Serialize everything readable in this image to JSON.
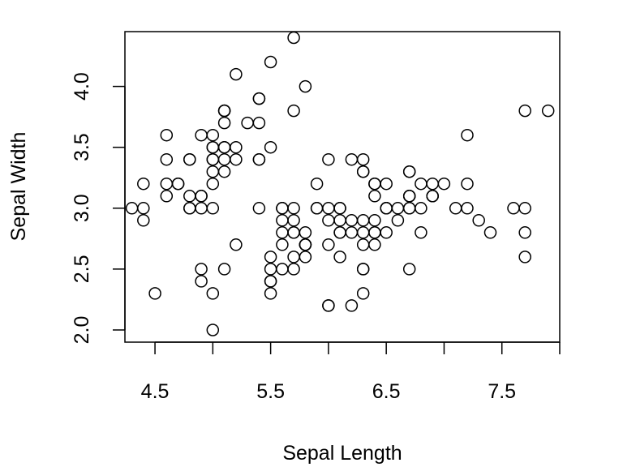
{
  "chart_data": {
    "type": "scatter",
    "title": "",
    "xlabel": "Sepal Length",
    "ylabel": "Sepal Width",
    "xlim": [
      4.24,
      8.0
    ],
    "ylim": [
      1.9,
      4.45
    ],
    "xticks": [
      4.5,
      5.5,
      6.5,
      7.5
    ],
    "xtick_labels": [
      "4.5",
      "5.5",
      "6.5",
      "7.5"
    ],
    "xticks_unlabeled": [
      5.0,
      6.0,
      7.0,
      8.0
    ],
    "yticks": [
      2.0,
      2.5,
      3.0,
      3.5,
      4.0
    ],
    "ytick_labels": [
      "2.0",
      "2.5",
      "3.0",
      "3.5",
      "4.0"
    ],
    "grid": false,
    "points": [
      [
        5.1,
        3.5
      ],
      [
        4.9,
        3.0
      ],
      [
        4.7,
        3.2
      ],
      [
        4.6,
        3.1
      ],
      [
        5.0,
        3.6
      ],
      [
        5.4,
        3.9
      ],
      [
        4.6,
        3.4
      ],
      [
        5.0,
        3.4
      ],
      [
        4.4,
        2.9
      ],
      [
        4.9,
        3.1
      ],
      [
        5.4,
        3.7
      ],
      [
        4.8,
        3.4
      ],
      [
        4.8,
        3.0
      ],
      [
        4.3,
        3.0
      ],
      [
        5.8,
        4.0
      ],
      [
        5.7,
        4.4
      ],
      [
        5.4,
        3.9
      ],
      [
        5.1,
        3.5
      ],
      [
        5.7,
        3.8
      ],
      [
        5.1,
        3.8
      ],
      [
        5.4,
        3.4
      ],
      [
        5.1,
        3.7
      ],
      [
        4.6,
        3.6
      ],
      [
        5.1,
        3.3
      ],
      [
        4.8,
        3.4
      ],
      [
        5.0,
        3.0
      ],
      [
        5.0,
        3.4
      ],
      [
        5.2,
        3.5
      ],
      [
        5.2,
        3.4
      ],
      [
        4.7,
        3.2
      ],
      [
        4.8,
        3.1
      ],
      [
        5.4,
        3.4
      ],
      [
        5.2,
        4.1
      ],
      [
        5.5,
        4.2
      ],
      [
        4.9,
        3.1
      ],
      [
        5.0,
        3.2
      ],
      [
        5.5,
        3.5
      ],
      [
        4.9,
        3.6
      ],
      [
        4.4,
        3.0
      ],
      [
        5.1,
        3.4
      ],
      [
        5.0,
        3.5
      ],
      [
        4.5,
        2.3
      ],
      [
        4.4,
        3.2
      ],
      [
        5.0,
        3.5
      ],
      [
        5.1,
        3.8
      ],
      [
        4.8,
        3.0
      ],
      [
        5.1,
        3.8
      ],
      [
        4.6,
        3.2
      ],
      [
        5.3,
        3.7
      ],
      [
        5.0,
        3.3
      ],
      [
        7.0,
        3.2
      ],
      [
        6.4,
        3.2
      ],
      [
        6.9,
        3.1
      ],
      [
        5.5,
        2.3
      ],
      [
        6.5,
        2.8
      ],
      [
        5.7,
        2.8
      ],
      [
        6.3,
        3.3
      ],
      [
        4.9,
        2.4
      ],
      [
        6.6,
        2.9
      ],
      [
        5.2,
        2.7
      ],
      [
        5.0,
        2.0
      ],
      [
        5.9,
        3.0
      ],
      [
        6.0,
        2.2
      ],
      [
        6.1,
        2.9
      ],
      [
        5.6,
        2.9
      ],
      [
        6.7,
        3.1
      ],
      [
        5.6,
        3.0
      ],
      [
        5.8,
        2.7
      ],
      [
        6.2,
        2.2
      ],
      [
        5.6,
        2.5
      ],
      [
        5.9,
        3.2
      ],
      [
        6.1,
        2.8
      ],
      [
        6.3,
        2.5
      ],
      [
        6.1,
        2.8
      ],
      [
        6.4,
        2.9
      ],
      [
        6.6,
        3.0
      ],
      [
        6.8,
        2.8
      ],
      [
        6.7,
        3.0
      ],
      [
        6.0,
        2.9
      ],
      [
        5.7,
        2.6
      ],
      [
        5.5,
        2.4
      ],
      [
        5.5,
        2.4
      ],
      [
        5.8,
        2.7
      ],
      [
        6.0,
        2.7
      ],
      [
        5.4,
        3.0
      ],
      [
        6.0,
        3.4
      ],
      [
        6.7,
        3.1
      ],
      [
        6.3,
        2.3
      ],
      [
        5.6,
        3.0
      ],
      [
        5.5,
        2.5
      ],
      [
        5.5,
        2.6
      ],
      [
        6.1,
        3.0
      ],
      [
        5.8,
        2.6
      ],
      [
        5.0,
        2.3
      ],
      [
        5.6,
        2.7
      ],
      [
        5.7,
        3.0
      ],
      [
        5.7,
        2.9
      ],
      [
        6.2,
        2.9
      ],
      [
        5.1,
        2.5
      ],
      [
        5.7,
        2.8
      ],
      [
        6.3,
        3.3
      ],
      [
        5.8,
        2.7
      ],
      [
        7.1,
        3.0
      ],
      [
        6.3,
        2.9
      ],
      [
        6.5,
        3.0
      ],
      [
        7.6,
        3.0
      ],
      [
        4.9,
        2.5
      ],
      [
        7.3,
        2.9
      ],
      [
        6.7,
        2.5
      ],
      [
        7.2,
        3.6
      ],
      [
        6.5,
        3.2
      ],
      [
        6.4,
        2.7
      ],
      [
        6.8,
        3.0
      ],
      [
        5.7,
        2.5
      ],
      [
        5.8,
        2.8
      ],
      [
        6.4,
        3.2
      ],
      [
        6.5,
        3.0
      ],
      [
        7.7,
        3.8
      ],
      [
        7.7,
        2.6
      ],
      [
        6.0,
        2.2
      ],
      [
        6.9,
        3.2
      ],
      [
        5.6,
        2.8
      ],
      [
        7.7,
        2.8
      ],
      [
        6.3,
        2.7
      ],
      [
        6.7,
        3.3
      ],
      [
        7.2,
        3.2
      ],
      [
        6.2,
        2.8
      ],
      [
        6.1,
        3.0
      ],
      [
        6.4,
        2.8
      ],
      [
        7.2,
        3.0
      ],
      [
        7.4,
        2.8
      ],
      [
        7.9,
        3.8
      ],
      [
        6.4,
        2.8
      ],
      [
        6.3,
        2.8
      ],
      [
        6.1,
        2.6
      ],
      [
        7.7,
        3.0
      ],
      [
        6.3,
        3.4
      ],
      [
        6.4,
        3.1
      ],
      [
        6.0,
        3.0
      ],
      [
        6.9,
        3.1
      ],
      [
        6.7,
        3.1
      ],
      [
        6.9,
        3.1
      ],
      [
        5.8,
        2.7
      ],
      [
        6.8,
        3.2
      ],
      [
        6.7,
        3.3
      ],
      [
        6.7,
        3.0
      ],
      [
        6.3,
        2.5
      ],
      [
        6.5,
        3.0
      ],
      [
        6.2,
        3.4
      ],
      [
        5.9,
        3.0
      ]
    ]
  }
}
